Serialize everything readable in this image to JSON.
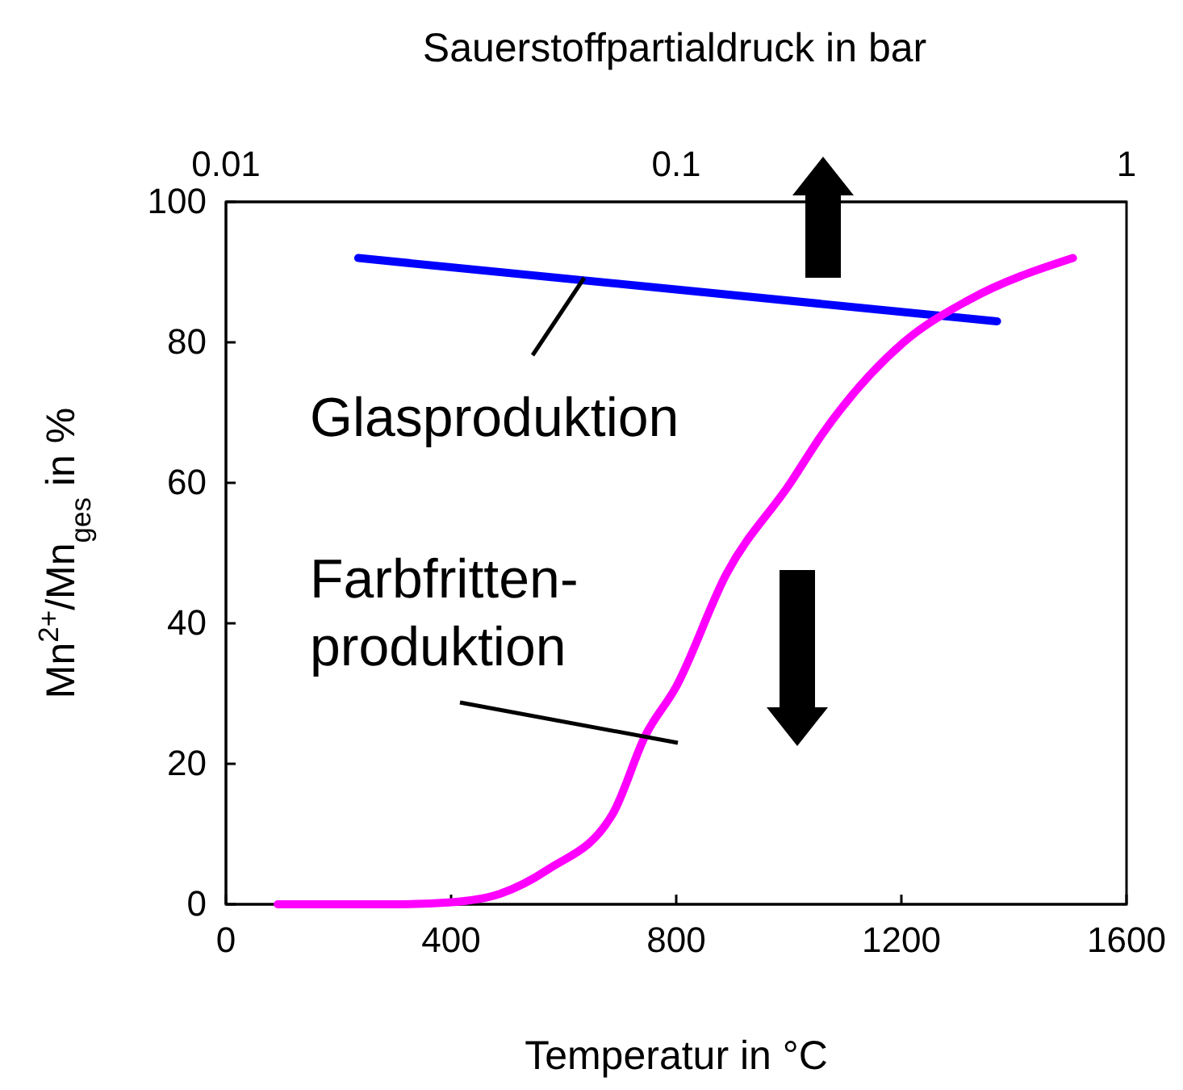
{
  "chart_data": {
    "type": "line",
    "xlabel": "Temperatur in °C",
    "ylabel": "Mn$^{2+}$/Mn$_{ges}$ in %",
    "x2label": "Sauerstoffpartialdruck in bar",
    "xlim": [
      0,
      1600
    ],
    "xticks": [
      0,
      400,
      800,
      1200,
      1600
    ],
    "ylim": [
      0,
      100
    ],
    "yticks": [
      0,
      20,
      40,
      60,
      80,
      100
    ],
    "x2lim": [
      0.01,
      1
    ],
    "x2ticks": [
      0.01,
      0.1,
      1
    ],
    "log": "x2",
    "grid": false,
    "marker": "none",
    "line_style": "solid",
    "series": [
      {
        "name": "Glasproduktion",
        "color": "#0000ff",
        "x": [
          235,
          1370
        ],
        "values": [
          92,
          83
        ]
      },
      {
        "name": "Farbfritten-produktion",
        "color": "#ff00ff",
        "x": [
          92,
          300,
          400,
          487,
          573,
          688,
          745,
          800,
          889,
          1003,
          1060,
          1204,
          1319,
          1505
        ],
        "values": [
          0,
          0,
          0.3,
          1.5,
          5,
          13,
          24,
          31,
          47,
          60,
          67,
          80,
          86,
          92
        ]
      }
    ]
  }
}
